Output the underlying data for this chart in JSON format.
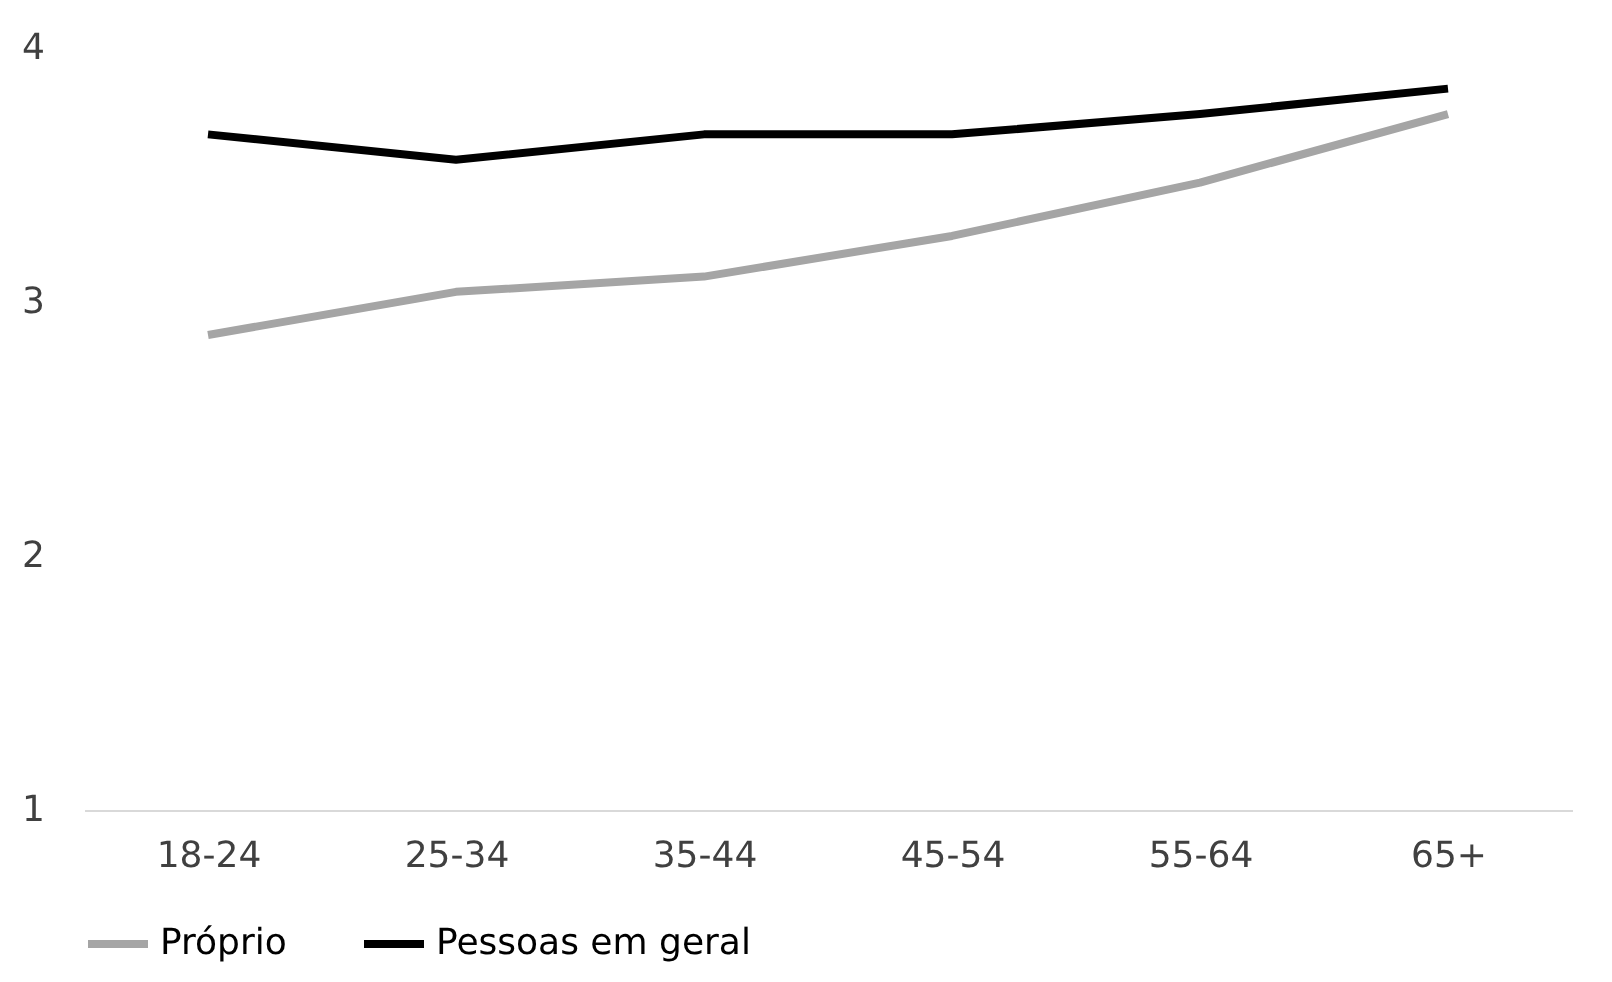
{
  "chart_data": {
    "type": "line",
    "categories": [
      "18-24",
      "25-34",
      "35-44",
      "45-54",
      "55-64",
      "65+"
    ],
    "series": [
      {
        "name": "Próprio",
        "color": "#a5a5a5",
        "values": [
          2.87,
          3.04,
          3.1,
          3.26,
          3.47,
          3.74
        ]
      },
      {
        "name": "Pessoas em geral",
        "color": "#000000",
        "values": [
          3.66,
          3.56,
          3.66,
          3.66,
          3.74,
          3.84
        ]
      }
    ],
    "ylim": [
      1,
      4
    ],
    "yticks": [
      1,
      2,
      3,
      4
    ],
    "grid": false,
    "legend": "bottom",
    "marker": "none",
    "line_style": "solid"
  }
}
